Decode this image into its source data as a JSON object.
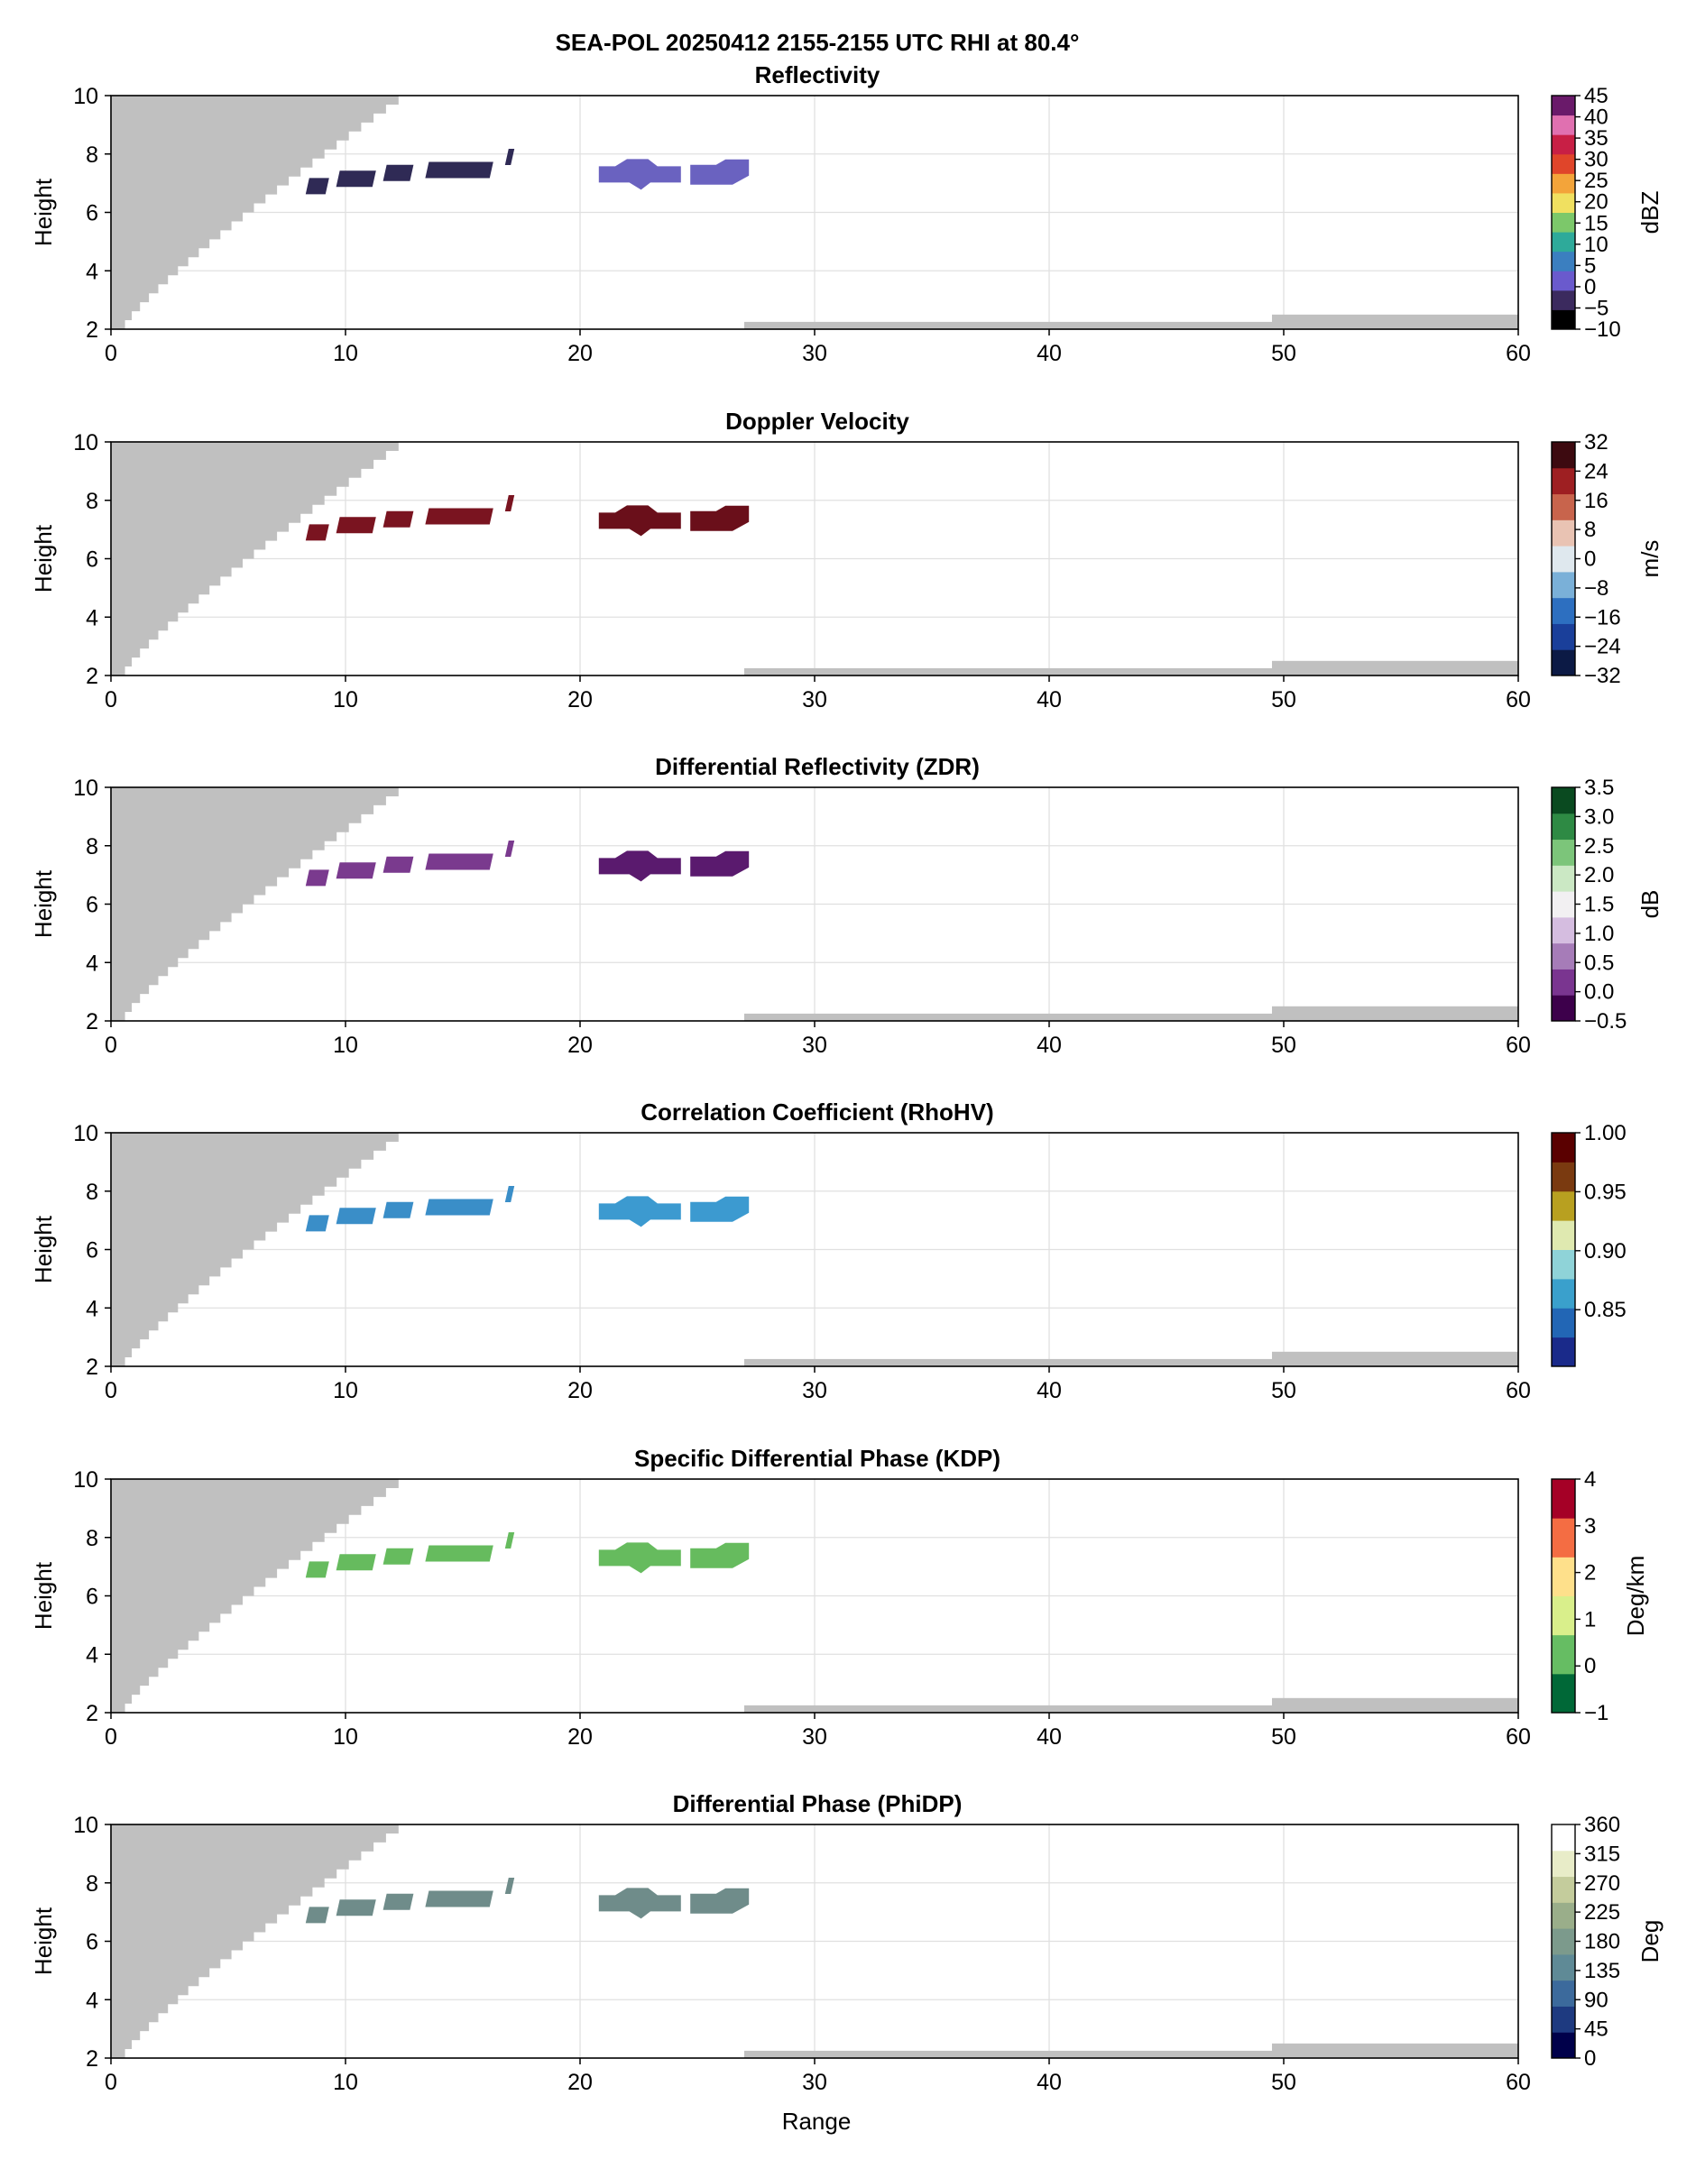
{
  "figure": {
    "suptitle": "SEA-POL 20250412 2155-2155 UTC RHI at 80.4°",
    "xlabel": "Range",
    "ylabel": "Height"
  },
  "colors": {
    "blocked": "#c0c0c0",
    "grid": "#e0e0e0",
    "axis": "#000000"
  },
  "chart_data": [
    {
      "type": "heatmap",
      "title": "Reflectivity",
      "xlabel": "",
      "ylabel": "Height",
      "xlim": [
        0,
        60
      ],
      "ylim": [
        2,
        10
      ],
      "xticks": [
        "0",
        "10",
        "20",
        "30",
        "40",
        "50",
        "60"
      ],
      "yticks": [
        "2",
        "4",
        "6",
        "8",
        "10"
      ],
      "grid": true,
      "colorbar": {
        "label": "dBZ",
        "ticks": [
          "−10",
          "−5",
          "0",
          "5",
          "10",
          "15",
          "20",
          "25",
          "30",
          "35",
          "40",
          "45"
        ],
        "colors": [
          "#000000",
          "#3b2a5e",
          "#6a5acd",
          "#3b7fc0",
          "#2eaa9a",
          "#7cc86a",
          "#f0e060",
          "#f3a43a",
          "#e0452a",
          "#c81f45",
          "#e070b0",
          "#6a1a6a"
        ]
      },
      "echoes": [
        {
          "x0": 8.3,
          "x1": 17.2,
          "height": 7.3,
          "color": "#2f2a55"
        },
        {
          "x0": 20.8,
          "x1": 27.2,
          "height": 7.3,
          "color": "#6a62c0"
        }
      ]
    },
    {
      "type": "heatmap",
      "title": "Doppler Velocity",
      "xlabel": "",
      "ylabel": "Height",
      "xlim": [
        0,
        60
      ],
      "ylim": [
        2,
        10
      ],
      "xticks": [
        "0",
        "10",
        "20",
        "30",
        "40",
        "50",
        "60"
      ],
      "yticks": [
        "2",
        "4",
        "6",
        "8",
        "10"
      ],
      "grid": true,
      "colorbar": {
        "label": "m/s",
        "ticks": [
          "−32",
          "−24",
          "−16",
          "−8",
          "0",
          "8",
          "16",
          "24",
          "32"
        ],
        "colors": [
          "#0c1a45",
          "#1a3f9a",
          "#2d6fc0",
          "#7ab0d8",
          "#dfe8ee",
          "#e9c3b3",
          "#c8644c",
          "#9e1f22",
          "#3d0a10"
        ]
      },
      "echoes": [
        {
          "x0": 8.3,
          "x1": 17.2,
          "height": 7.3,
          "color": "#7a1420"
        },
        {
          "x0": 20.8,
          "x1": 27.2,
          "height": 7.3,
          "color": "#6a0f1a"
        }
      ]
    },
    {
      "type": "heatmap",
      "title": "Differential Reflectivity (ZDR)",
      "xlabel": "",
      "ylabel": "Height",
      "xlim": [
        0,
        60
      ],
      "ylim": [
        2,
        10
      ],
      "xticks": [
        "0",
        "10",
        "20",
        "30",
        "40",
        "50",
        "60"
      ],
      "yticks": [
        "2",
        "4",
        "6",
        "8",
        "10"
      ],
      "grid": true,
      "colorbar": {
        "label": "dB",
        "ticks": [
          "−0.5",
          "0.0",
          "0.5",
          "1.0",
          "1.5",
          "2.0",
          "2.5",
          "3.0",
          "3.5"
        ],
        "colors": [
          "#3d004b",
          "#7a3590",
          "#a67cb8",
          "#d5bde0",
          "#f2f0f2",
          "#cbe8c4",
          "#7cc57a",
          "#2e8a44",
          "#0a4a20"
        ]
      },
      "echoes": [
        {
          "x0": 8.3,
          "x1": 17.2,
          "height": 7.3,
          "color": "#7a3a8e"
        },
        {
          "x0": 20.8,
          "x1": 27.2,
          "height": 7.3,
          "color": "#5a1a6e"
        }
      ]
    },
    {
      "type": "heatmap",
      "title": "Correlation Coefficient (RhoHV)",
      "xlabel": "",
      "ylabel": "Height",
      "xlim": [
        0,
        60
      ],
      "ylim": [
        0.8,
        1.0
      ],
      "xticks": [
        "0",
        "10",
        "20",
        "30",
        "40",
        "50",
        "60"
      ],
      "yticks": [
        "2",
        "4",
        "6",
        "8",
        "10"
      ],
      "grid": true,
      "colorbar": {
        "label": "",
        "ticks": [
          "0.85",
          "0.90",
          "0.95",
          "1.00"
        ],
        "colors": [
          "#1a2a8a",
          "#2266b5",
          "#3aa0cc",
          "#8fd3d8",
          "#dfe9b0",
          "#b8a020",
          "#7a3a10",
          "#5a0000"
        ]
      },
      "echoes": [
        {
          "x0": 8.3,
          "x1": 17.2,
          "height": 7.3,
          "color": "#3a8ec8"
        },
        {
          "x0": 20.8,
          "x1": 27.2,
          "height": 7.3,
          "color": "#3c9ad0"
        }
      ]
    },
    {
      "type": "heatmap",
      "title": "Specific Differential Phase (KDP)",
      "xlabel": "",
      "ylabel": "Height",
      "xlim": [
        0,
        60
      ],
      "ylim": [
        2,
        10
      ],
      "xticks": [
        "0",
        "10",
        "20",
        "30",
        "40",
        "50",
        "60"
      ],
      "yticks": [
        "2",
        "4",
        "6",
        "8",
        "10"
      ],
      "grid": true,
      "colorbar": {
        "label": "Deg/km",
        "ticks": [
          "−1",
          "0",
          "1",
          "2",
          "3",
          "4"
        ],
        "colors": [
          "#006837",
          "#66bd63",
          "#d9ef8b",
          "#fee08b",
          "#f46d43",
          "#a50026"
        ]
      },
      "echoes": [
        {
          "x0": 8.3,
          "x1": 17.2,
          "height": 7.3,
          "color": "#66bb5e"
        },
        {
          "x0": 20.8,
          "x1": 27.2,
          "height": 7.3,
          "color": "#66bb5e"
        }
      ]
    },
    {
      "type": "heatmap",
      "title": "Differential Phase (PhiDP)",
      "xlabel": "Range",
      "ylabel": "Height",
      "xlim": [
        0,
        60
      ],
      "ylim": [
        2,
        10
      ],
      "xticks": [
        "0",
        "10",
        "20",
        "30",
        "40",
        "50",
        "60"
      ],
      "yticks": [
        "2",
        "4",
        "6",
        "8",
        "10"
      ],
      "grid": true,
      "colorbar": {
        "label": "Deg",
        "ticks": [
          "0",
          "45",
          "90",
          "135",
          "180",
          "225",
          "270",
          "315",
          "360"
        ],
        "colors": [
          "#00004a",
          "#1e3a80",
          "#3c6a9c",
          "#5f8a96",
          "#7c9a8c",
          "#9aae8a",
          "#c4cc9c",
          "#e8ecc8",
          "#ffffff"
        ]
      },
      "echoes": [
        {
          "x0": 8.3,
          "x1": 17.2,
          "height": 7.3,
          "color": "#6f8c8a"
        },
        {
          "x0": 20.8,
          "x1": 27.2,
          "height": 7.3,
          "color": "#6f8c8a"
        }
      ]
    }
  ]
}
